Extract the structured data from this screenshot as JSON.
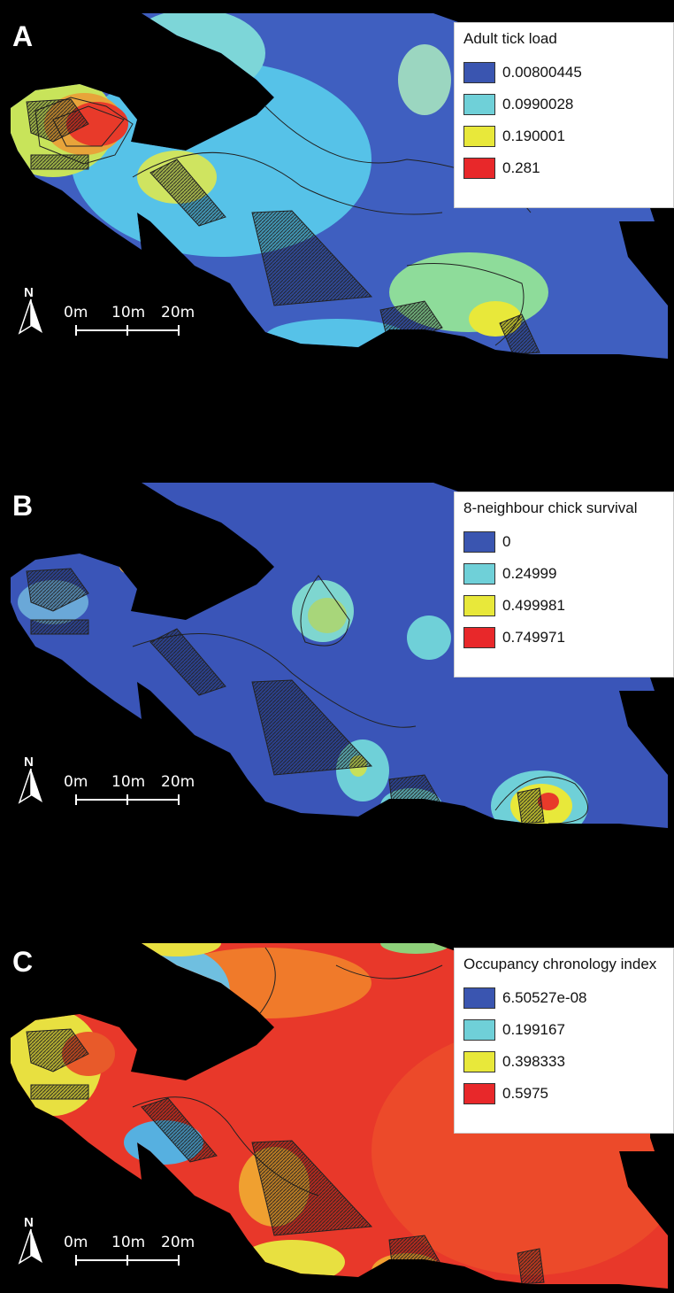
{
  "panels": [
    {
      "letter": "A",
      "legend_title": "Adult tick load",
      "legend_items": [
        {
          "label": "0.00800445",
          "color": "#3a55b0"
        },
        {
          "label": "0.0990028",
          "color": "#6fd0d8"
        },
        {
          "label": "0.190001",
          "color": "#e8e83a"
        },
        {
          "label": "0.281",
          "color": "#e8282a"
        }
      ]
    },
    {
      "letter": "B",
      "legend_title": "8-neighbour chick survival",
      "legend_items": [
        {
          "label": "0",
          "color": "#3a55b0"
        },
        {
          "label": "0.24999",
          "color": "#6fd0d8"
        },
        {
          "label": "0.499981",
          "color": "#e8e83a"
        },
        {
          "label": "0.749971",
          "color": "#e8282a"
        }
      ]
    },
    {
      "letter": "C",
      "legend_title": "Occupancy chronology index",
      "legend_items": [
        {
          "label": "6.50527e-08",
          "color": "#3a55b0"
        },
        {
          "label": "0.199167",
          "color": "#6fd0d8"
        },
        {
          "label": "0.398333",
          "color": "#e8e83a"
        },
        {
          "label": "0.5975",
          "color": "#e8282a"
        }
      ]
    }
  ],
  "north_label": "N",
  "scale": {
    "l0": "0m",
    "l1": "10m",
    "l2": "20m"
  }
}
